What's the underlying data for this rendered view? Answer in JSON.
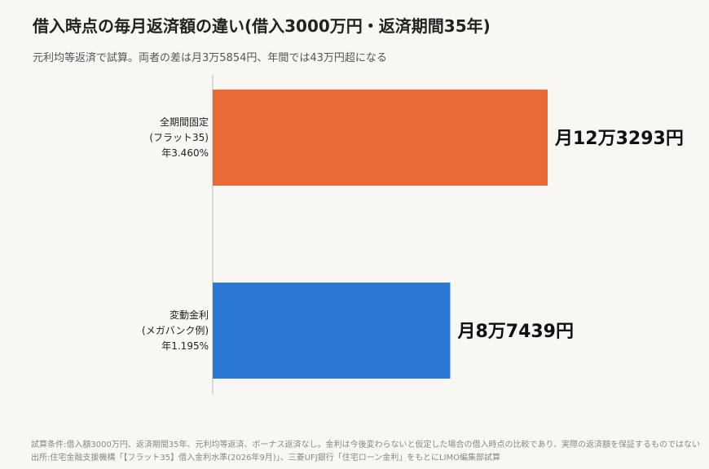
{
  "header": {
    "title": "借入時点の毎月返済額の違い(借入3000万円・返済期間35年)",
    "subtitle": "元利均等返済で試算。両者の差は月3万5854円、年間では43万円超になる"
  },
  "footer": {
    "line1": "試算条件:借入額3000万円、返済期間35年、元利均等返済、ボーナス返済なし。金利は今後変わらないと仮定した場合の借入時点の比較であり、実際の返済額を保証するものではない",
    "line2": "出所:住宅金融支援機構「【フラット35】借入金利水準(2026年9月)」、三菱UFJ銀行「住宅ローン金利」をもとにLIMO編集部試算"
  },
  "chart_data": {
    "type": "bar",
    "orientation": "horizontal",
    "categories": [
      [
        "全期間固定",
        "(フラット35)",
        "年3.460%"
      ],
      [
        "変動金利",
        "(メガバンク例)",
        "年1.195%"
      ]
    ],
    "values": [
      123293,
      87439
    ],
    "data_labels": [
      "月12万3293円",
      "月8万7439円"
    ],
    "colors": [
      "#e96a35",
      "#2a78d4"
    ],
    "xlim": [
      0,
      135000
    ],
    "grid": false,
    "legend": "none"
  }
}
